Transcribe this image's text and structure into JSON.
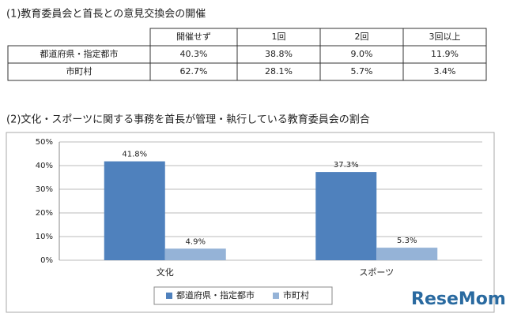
{
  "section1": {
    "title": "(1)教育委員会と首長との意見交換会の開催",
    "table": {
      "header": [
        "開催せず",
        "1回",
        "2回",
        "3回以上"
      ],
      "rows": [
        [
          "都道府県・指定都市",
          "40.3%",
          "38.8%",
          "9.0%",
          "11.9%"
        ],
        [
          "市町村",
          "62.7%",
          "28.1%",
          "5.7%",
          "3.4%"
        ]
      ]
    }
  },
  "chart_data": {
    "type": "bar",
    "title": "(2)文化・スポーツに関する事務を首長が管理・執行している教育委員会の割合",
    "categories": [
      "文化",
      "スポーツ"
    ],
    "series": [
      {
        "name": "都道府県・指定都市",
        "color": "#4f81bd",
        "values": [
          41.8,
          37.3
        ],
        "value_labels": [
          "41.8%",
          "37.3%"
        ]
      },
      {
        "name": "市町村",
        "color": "#95b3d7",
        "values": [
          4.9,
          5.3
        ],
        "value_labels": [
          "4.9%",
          "5.3%"
        ]
      }
    ],
    "ylim": [
      0,
      50
    ],
    "yticks": [
      {
        "value": 0,
        "label": "0%"
      },
      {
        "value": 10,
        "label": "10%"
      },
      {
        "value": 20,
        "label": "20%"
      },
      {
        "value": 30,
        "label": "30%"
      },
      {
        "value": 40,
        "label": "40%"
      },
      {
        "value": 50,
        "label": "50%"
      }
    ],
    "grid": true
  },
  "watermark": "ReseMom"
}
